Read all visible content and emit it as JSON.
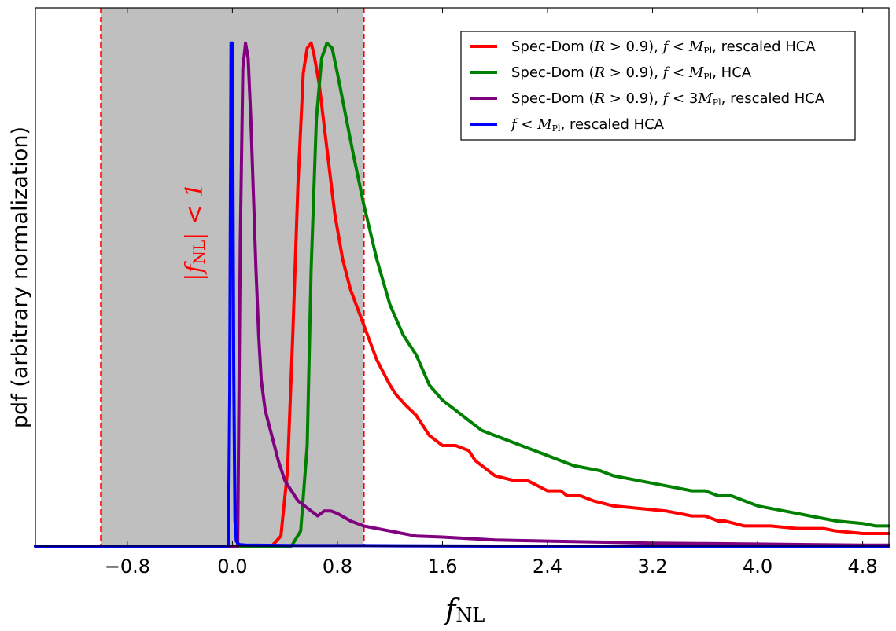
{
  "chart_data": {
    "type": "line",
    "title": "",
    "xlabel": "f",
    "xlabel_sub": "NL",
    "ylabel": "pdf (arbitrary normalization)",
    "xlim": [
      -1.5,
      5.0
    ],
    "ylim": [
      0,
      1.07
    ],
    "xticks": [
      -0.8,
      0.0,
      0.8,
      1.6,
      2.4,
      3.2,
      4.0,
      4.8
    ],
    "xtick_labels": [
      "−0.8",
      "0.0",
      "0.8",
      "1.6",
      "2.4",
      "3.2",
      "4.0",
      "4.8"
    ],
    "yticks_shown": false,
    "legend_position": "top-right",
    "shaded_region": {
      "x_from": -1.0,
      "x_to": 1.0,
      "color": "#bfbfbf",
      "border_color": "#ff0000",
      "border_style": "dashed"
    },
    "annotation": {
      "text_main": "|f",
      "text_sub": "NL",
      "text_tail": "| < 1",
      "color": "#ff0000",
      "orientation": "vertical"
    },
    "series": [
      {
        "name": "Spec-Dom (R > 0.9), f < M_Pl, rescaled HCA",
        "legend_parts": [
          "Spec-Dom (",
          "R",
          " > 0.9), ",
          "f",
          " < ",
          "M",
          "Pl",
          ", rescaled HCA"
        ],
        "color": "#ff0000",
        "x": [
          -1.5,
          0.3,
          0.37,
          0.42,
          0.46,
          0.5,
          0.54,
          0.57,
          0.6,
          0.62,
          0.66,
          0.72,
          0.78,
          0.84,
          0.9,
          1.0,
          1.1,
          1.2,
          1.25,
          1.32,
          1.4,
          1.5,
          1.6,
          1.7,
          1.8,
          1.85,
          1.95,
          2.0,
          2.15,
          2.25,
          2.4,
          2.5,
          2.55,
          2.65,
          2.75,
          2.9,
          3.1,
          3.3,
          3.5,
          3.6,
          3.7,
          3.75,
          3.9,
          4.1,
          4.3,
          4.5,
          4.6,
          4.8,
          5.0
        ],
        "y": [
          0.0,
          0.0,
          0.02,
          0.15,
          0.42,
          0.72,
          0.94,
          0.99,
          1.0,
          0.98,
          0.92,
          0.79,
          0.66,
          0.57,
          0.51,
          0.44,
          0.37,
          0.32,
          0.3,
          0.28,
          0.26,
          0.22,
          0.2,
          0.2,
          0.19,
          0.17,
          0.15,
          0.14,
          0.13,
          0.13,
          0.11,
          0.11,
          0.1,
          0.1,
          0.09,
          0.08,
          0.075,
          0.07,
          0.06,
          0.06,
          0.05,
          0.05,
          0.04,
          0.04,
          0.035,
          0.035,
          0.03,
          0.025,
          0.025
        ]
      },
      {
        "name": "Spec-Dom (R > 0.9), f < M_Pl, HCA",
        "legend_parts": [
          "Spec-Dom (",
          "R",
          " > 0.9), ",
          "f",
          " < ",
          "M",
          "Pl",
          ", HCA"
        ],
        "color": "#008000",
        "x": [
          -1.5,
          0.45,
          0.52,
          0.57,
          0.6,
          0.64,
          0.68,
          0.72,
          0.76,
          0.8,
          0.86,
          0.92,
          1.0,
          1.1,
          1.2,
          1.3,
          1.4,
          1.5,
          1.6,
          1.7,
          1.8,
          1.9,
          2.0,
          2.2,
          2.4,
          2.6,
          2.8,
          2.9,
          3.1,
          3.3,
          3.5,
          3.6,
          3.7,
          3.8,
          3.9,
          4.0,
          4.2,
          4.4,
          4.6,
          4.8,
          4.9,
          5.0
        ],
        "y": [
          0.0,
          0.0,
          0.03,
          0.2,
          0.55,
          0.85,
          0.97,
          1.0,
          0.99,
          0.94,
          0.86,
          0.78,
          0.68,
          0.57,
          0.48,
          0.42,
          0.38,
          0.32,
          0.29,
          0.27,
          0.25,
          0.23,
          0.22,
          0.2,
          0.18,
          0.16,
          0.15,
          0.14,
          0.13,
          0.12,
          0.11,
          0.11,
          0.1,
          0.1,
          0.09,
          0.08,
          0.07,
          0.06,
          0.05,
          0.045,
          0.04,
          0.04
        ]
      },
      {
        "name": "Spec-Dom (R > 0.9), f < 3M_Pl, rescaled HCA",
        "legend_parts": [
          "Spec-Dom (",
          "R",
          " > 0.9), ",
          "f",
          " < 3",
          "M",
          "Pl",
          ", rescaled HCA"
        ],
        "color": "#800080",
        "x": [
          -1.5,
          0.04,
          0.06,
          0.08,
          0.1,
          0.12,
          0.14,
          0.16,
          0.18,
          0.2,
          0.22,
          0.25,
          0.3,
          0.35,
          0.4,
          0.45,
          0.5,
          0.55,
          0.6,
          0.65,
          0.7,
          0.75,
          0.8,
          0.9,
          1.0,
          1.1,
          1.2,
          1.4,
          1.6,
          1.8,
          2.0,
          2.4,
          2.8,
          3.2,
          3.6,
          4.0,
          4.4,
          4.8,
          5.0
        ],
        "y": [
          0.0,
          0.0,
          0.6,
          0.95,
          1.0,
          0.97,
          0.85,
          0.7,
          0.55,
          0.42,
          0.33,
          0.27,
          0.22,
          0.17,
          0.13,
          0.11,
          0.09,
          0.08,
          0.07,
          0.06,
          0.07,
          0.07,
          0.065,
          0.05,
          0.04,
          0.035,
          0.03,
          0.02,
          0.018,
          0.015,
          0.012,
          0.01,
          0.008,
          0.006,
          0.005,
          0.004,
          0.003,
          0.002,
          0.002
        ]
      },
      {
        "name": "f < M_Pl, rescaled HCA",
        "legend_parts": [
          "",
          "",
          "",
          "f",
          " < ",
          "M",
          "Pl",
          ", rescaled HCA"
        ],
        "color": "#0000ff",
        "x": [
          -1.5,
          -0.03,
          -0.02,
          -0.01,
          0.0,
          0.01,
          0.02,
          0.03,
          0.05,
          0.1,
          0.5,
          1.0,
          2.0,
          3.0,
          4.0,
          5.0
        ],
        "y": [
          0.0,
          0.0,
          0.3,
          1.0,
          1.0,
          0.35,
          0.05,
          0.01,
          0.003,
          0.002,
          0.001,
          0.001,
          0.0,
          0.0,
          0.0,
          0.0
        ]
      }
    ]
  }
}
